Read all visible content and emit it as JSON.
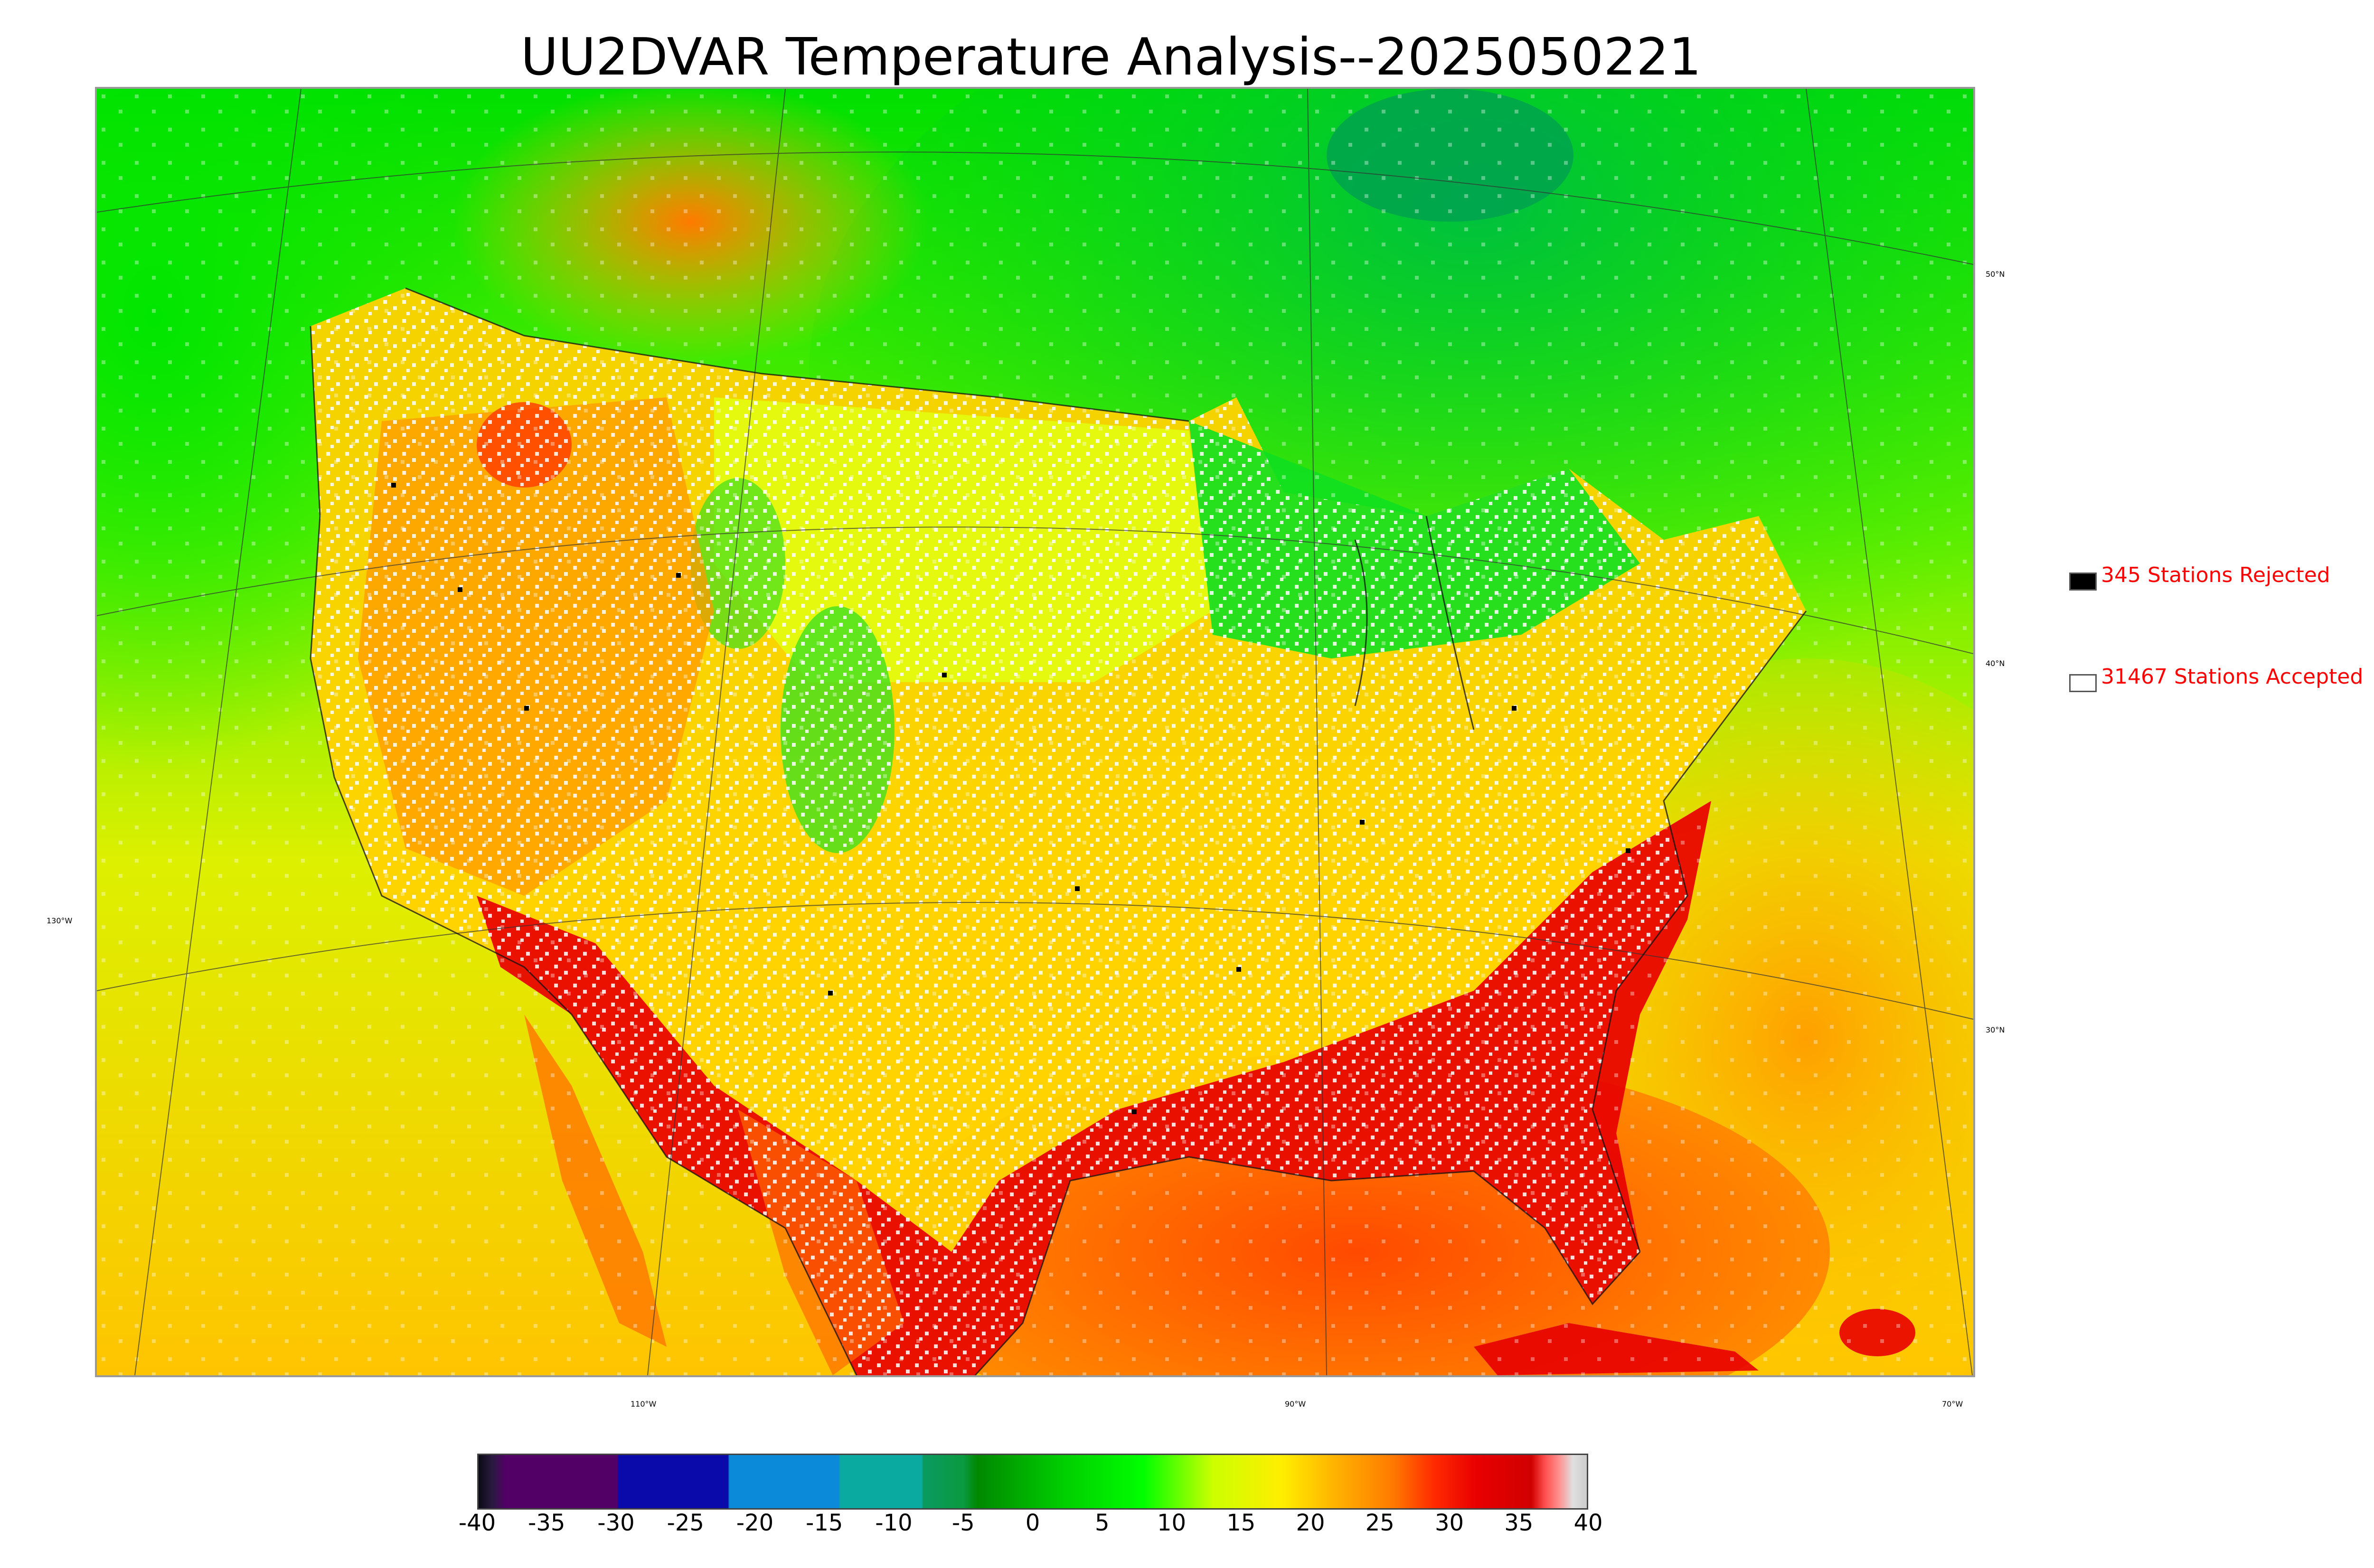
{
  "title": "UU2DVAR Temperature Analysis--2025050221",
  "graticule": {
    "lat_labels": [
      "50°N",
      "40°N",
      "30°N"
    ],
    "lon_labels": [
      "130°W",
      "110°W",
      "90°W",
      "70°W"
    ]
  },
  "legend": {
    "rejected": {
      "label": "345 Stations Rejected",
      "color": "#000000"
    },
    "accepted": {
      "label": "31467 Stations Accepted",
      "color": "#ffffff"
    }
  },
  "colorbar": {
    "min": -40,
    "max": 40,
    "tick_labels": [
      "-40",
      "-35",
      "-30",
      "-25",
      "-20",
      "-15",
      "-10",
      "-5",
      "0",
      "5",
      "10",
      "15",
      "20",
      "25",
      "30",
      "35",
      "40"
    ],
    "stops": [
      {
        "v": -40,
        "c": "#0a0a14"
      },
      {
        "v": -39,
        "c": "#2a1a40"
      },
      {
        "v": -38,
        "c": "#520066"
      },
      {
        "v": -30,
        "c": "#520066"
      },
      {
        "v": -29.9,
        "c": "#0a0aaa"
      },
      {
        "v": -22,
        "c": "#0a0aaa"
      },
      {
        "v": -21.9,
        "c": "#0a8ad8"
      },
      {
        "v": -14,
        "c": "#0a8ad8"
      },
      {
        "v": -13.9,
        "c": "#0aaaa0"
      },
      {
        "v": -8,
        "c": "#0aaaa0"
      },
      {
        "v": -7.9,
        "c": "#0a9a60"
      },
      {
        "v": -5,
        "c": "#0a9a40"
      },
      {
        "v": -4,
        "c": "#008800"
      },
      {
        "v": 2,
        "c": "#00cc00"
      },
      {
        "v": 8,
        "c": "#00ff00"
      },
      {
        "v": 13,
        "c": "#ccff00"
      },
      {
        "v": 18,
        "c": "#ffee00"
      },
      {
        "v": 22,
        "c": "#ffb000"
      },
      {
        "v": 26,
        "c": "#ff7a00"
      },
      {
        "v": 29,
        "c": "#ff2a00"
      },
      {
        "v": 32,
        "c": "#e80000"
      },
      {
        "v": 36,
        "c": "#d00000"
      },
      {
        "v": 37,
        "c": "#ff5050"
      },
      {
        "v": 38,
        "c": "#ff9090"
      },
      {
        "v": 39,
        "c": "#e0e0e0"
      },
      {
        "v": 40,
        "c": "#cccccc"
      }
    ]
  }
}
